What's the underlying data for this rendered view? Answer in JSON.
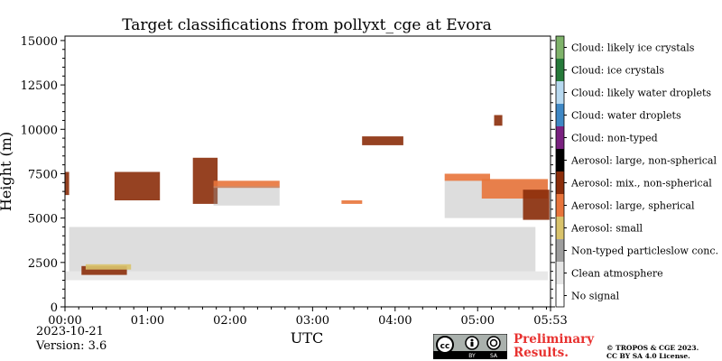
{
  "chart_data": {
    "type": "heatmap",
    "title": "Target classifications from pollyxt_cge at Evora",
    "xlabel": "UTC",
    "ylabel": "Height (m)",
    "x_range_hours": [
      0,
      5.883
    ],
    "ylim": [
      0,
      15250
    ],
    "x_ticks": [
      {
        "h": 0,
        "label": "00:00"
      },
      {
        "h": 1,
        "label": "01:00"
      },
      {
        "h": 2,
        "label": "02:00"
      },
      {
        "h": 3,
        "label": "03:00"
      },
      {
        "h": 4,
        "label": "04:00"
      },
      {
        "h": 5,
        "label": "05:00"
      },
      {
        "h": 5.883,
        "label": "05:53"
      }
    ],
    "y_ticks": [
      {
        "v": 0,
        "label": "0"
      },
      {
        "v": 2500,
        "label": "2500"
      },
      {
        "v": 5000,
        "label": "5000"
      },
      {
        "v": 7500,
        "label": "7500"
      },
      {
        "v": 10000,
        "label": "10000"
      },
      {
        "v": 12500,
        "label": "12500"
      },
      {
        "v": 15000,
        "label": "15000"
      }
    ],
    "legend": [
      {
        "label": "Cloud: likely ice crystals",
        "color": "#7fb36a"
      },
      {
        "label": "Cloud: ice crystals",
        "color": "#267a3a"
      },
      {
        "label": "Cloud: likely water droplets",
        "color": "#b7d9f0"
      },
      {
        "label": "Cloud: water droplets",
        "color": "#3f88c5"
      },
      {
        "label": "Cloud: non-typed",
        "color": "#7a2180"
      },
      {
        "label": "Aerosol: large, non-spherical",
        "color": "#000000"
      },
      {
        "label": "Aerosol: mix., non-spherical",
        "color": "#8b2d0a"
      },
      {
        "label": "Aerosol: large, spherical",
        "color": "#e8743b"
      },
      {
        "label": "Aerosol: small",
        "color": "#d9c36b"
      },
      {
        "label": "Non-typed particleslow conc.",
        "color": "#9e9e9e"
      },
      {
        "label": "Clean atmosphere",
        "color": "#e6e6e6"
      },
      {
        "label": "No signal",
        "color": "#ffffff"
      }
    ],
    "regions": [
      {
        "class": "Clean atmosphere",
        "t": [
          0,
          5.85
        ],
        "h": [
          1500,
          2000
        ]
      },
      {
        "class": "Non-typed particleslow conc.",
        "t": [
          0.05,
          5.7
        ],
        "h": [
          2000,
          4500
        ]
      },
      {
        "class": "Aerosol: mix., non-spherical",
        "t": [
          0.2,
          0.75
        ],
        "h": [
          1800,
          2300
        ]
      },
      {
        "class": "Aerosol: small",
        "t": [
          0.25,
          0.8
        ],
        "h": [
          2100,
          2400
        ]
      },
      {
        "class": "Aerosol: mix., non-spherical",
        "t": [
          0.0,
          0.05
        ],
        "h": [
          6300,
          7600
        ]
      },
      {
        "class": "Aerosol: mix., non-spherical",
        "t": [
          0.6,
          1.15
        ],
        "h": [
          6000,
          7600
        ]
      },
      {
        "class": "Aerosol: mix., non-spherical",
        "t": [
          1.55,
          1.85
        ],
        "h": [
          5800,
          8400
        ]
      },
      {
        "class": "Aerosol: large, spherical",
        "t": [
          1.8,
          2.6
        ],
        "h": [
          6700,
          7100
        ]
      },
      {
        "class": "Non-typed particleslow conc.",
        "t": [
          1.8,
          2.6
        ],
        "h": [
          5700,
          6800
        ]
      },
      {
        "class": "Aerosol: large, spherical",
        "t": [
          3.35,
          3.6
        ],
        "h": [
          5800,
          6000
        ]
      },
      {
        "class": "Aerosol: mix., non-spherical",
        "t": [
          3.6,
          4.1
        ],
        "h": [
          9100,
          9600
        ]
      },
      {
        "class": "Aerosol: large, spherical",
        "t": [
          4.6,
          5.15
        ],
        "h": [
          7100,
          7500
        ]
      },
      {
        "class": "Non-typed particleslow conc.",
        "t": [
          4.6,
          5.85
        ],
        "h": [
          5000,
          7100
        ]
      },
      {
        "class": "Aerosol: large, spherical",
        "t": [
          5.05,
          5.85
        ],
        "h": [
          6100,
          7200
        ]
      },
      {
        "class": "Aerosol: mix., non-spherical",
        "t": [
          5.55,
          5.87
        ],
        "h": [
          4900,
          6600
        ]
      },
      {
        "class": "Aerosol: mix., non-spherical",
        "t": [
          5.2,
          5.3
        ],
        "h": [
          10200,
          10800
        ]
      }
    ]
  },
  "footer": {
    "date": "2023-10-21",
    "version": "Version: 3.6",
    "preliminary_line1": "Preliminary",
    "preliminary_line2": "Results.",
    "copyright_line1": "© TROPOS & CGE 2023.",
    "copyright_line2": "CC BY SA 4.0 License.",
    "cc_labels": [
      "BY",
      "SA"
    ]
  }
}
